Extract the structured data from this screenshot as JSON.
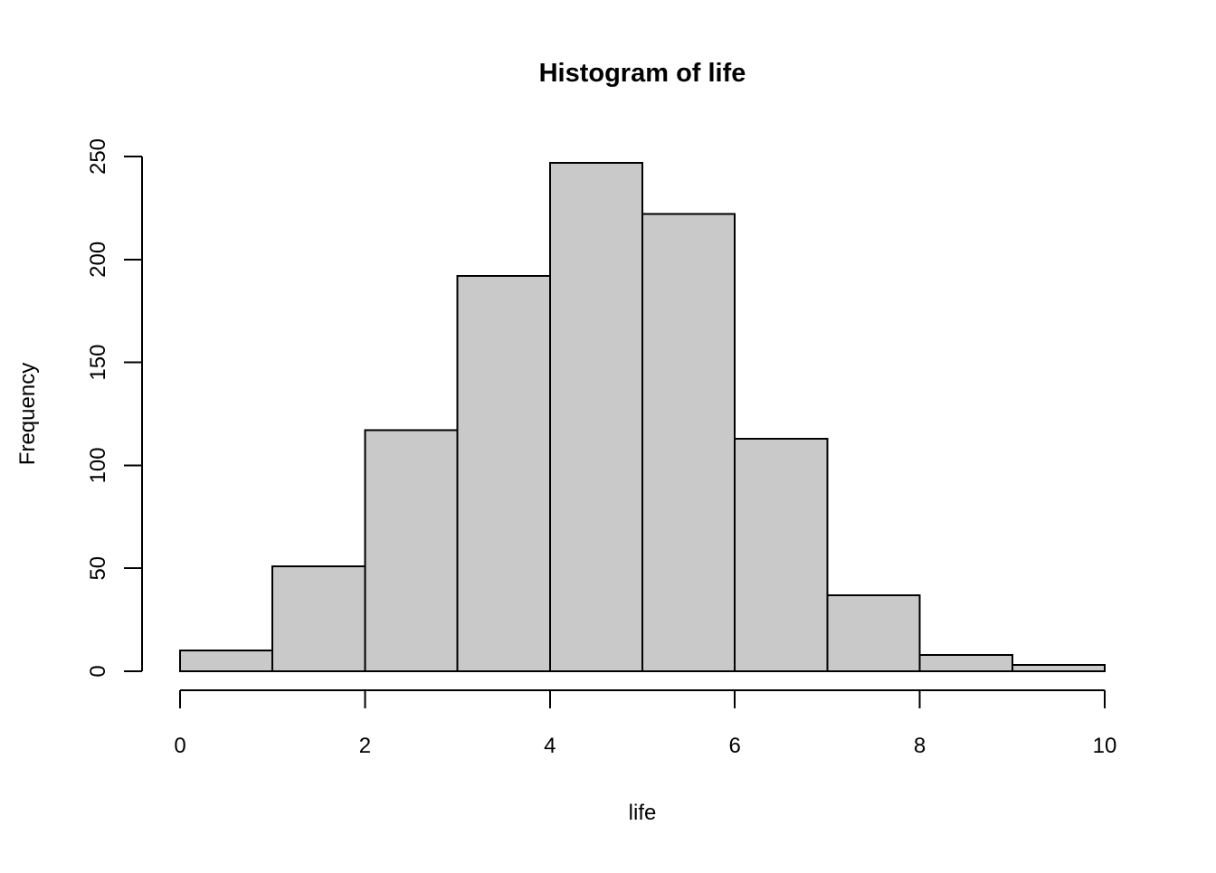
{
  "page": {
    "background": "#ffffff",
    "kind": "R plot window"
  },
  "chart_data": {
    "type": "bar",
    "variant": "histogram",
    "title": "Histogram of life",
    "xlabel": "life",
    "ylabel": "Frequency",
    "bin_edges": [
      0,
      1,
      2,
      3,
      4,
      5,
      6,
      7,
      8,
      9,
      10
    ],
    "values": [
      10,
      51,
      117,
      192,
      247,
      222,
      113,
      37,
      8,
      3
    ],
    "x_ticks": [
      "0",
      "2",
      "4",
      "6",
      "8",
      "10"
    ],
    "x_tick_values": [
      0,
      2,
      4,
      6,
      8,
      10
    ],
    "y_ticks": [
      "0",
      "50",
      "100",
      "150",
      "200",
      "250"
    ],
    "y_tick_values": [
      0,
      50,
      100,
      150,
      200,
      250
    ],
    "xlim": [
      0,
      10
    ],
    "ylim": [
      0,
      250
    ],
    "grid": "off",
    "legend": "none",
    "bar_fill": "#C9C9C9",
    "bar_stroke": "#000000",
    "axis_color": "#000000",
    "text_color": "#000000"
  }
}
